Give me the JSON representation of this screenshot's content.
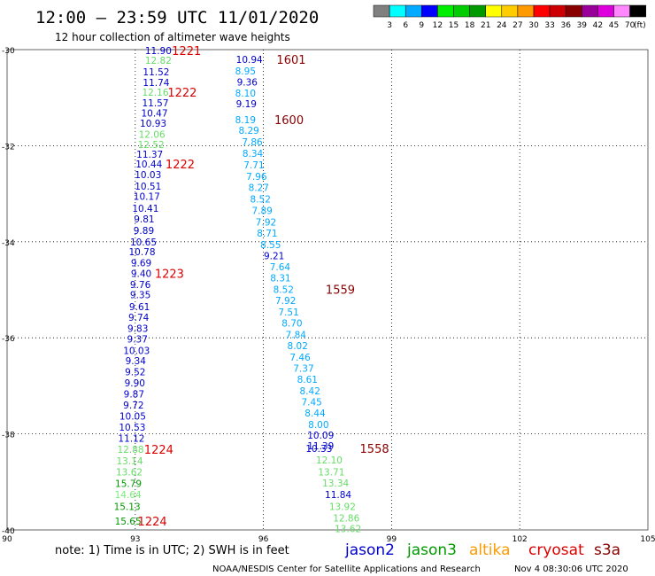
{
  "header": {
    "title": "12:00 — 23:59 UTC 11/01/2020",
    "subtitle": "12 hour collection of altimeter wave heights"
  },
  "colorbar": {
    "colors": [
      "#808080",
      "#00ffff",
      "#00aaff",
      "#0000ff",
      "#00ee00",
      "#00cc00",
      "#009900",
      "#ffff00",
      "#ffcc00",
      "#ff9900",
      "#ff0000",
      "#cc0000",
      "#880000",
      "#990099",
      "#dd00dd",
      "#ff88ff",
      "#000000"
    ],
    "labels": [
      "3",
      "6",
      "9",
      "12",
      "15",
      "18",
      "21",
      "24",
      "27",
      "30",
      "33",
      "36",
      "39",
      "42",
      "45",
      "70"
    ],
    "unit": "(ft)"
  },
  "footer": {
    "note": "note:  1) Time is in UTC;  2) SWH is in feet",
    "credit": "NOAA/NESDIS Center for Satellite Applications and Research",
    "timestamp": "Nov  4 08:30:06 UTC 2020",
    "satellites": [
      {
        "name": "jason2",
        "color": "#0000cc"
      },
      {
        "name": "jason3",
        "color": "#009900"
      },
      {
        "name": "altika",
        "color": "#ff9900"
      },
      {
        "name": "cryosat",
        "color": "#dd0000"
      },
      {
        "name": "s3a",
        "color": "#880000"
      }
    ]
  },
  "chart_data": {
    "type": "scatter",
    "xlim": [
      90,
      105
    ],
    "ylim": [
      -40,
      -30
    ],
    "xticks": [
      "90",
      "93",
      "96",
      "99",
      "102",
      "105"
    ],
    "yticks": [
      "-30",
      "-32",
      "-34",
      "-36",
      "-38",
      "-40"
    ],
    "grid": true,
    "point_colors": {
      "c3": "#00aaff",
      "c6": "#1a8cd9",
      "c9": "#0000cc",
      "c12": "#00cc00",
      "c12b": "#66dd66",
      "c15": "#009900",
      "c15b": "#77ee77"
    },
    "track_west": [
      {
        "x": 93.54,
        "y": -30.02,
        "label": "11.90",
        "color": "c9"
      },
      {
        "x": 93.54,
        "y": -30.22,
        "label": "12.82",
        "color": "c12b"
      },
      {
        "x": 93.49,
        "y": -30.46,
        "label": "11.52",
        "color": "c9"
      },
      {
        "x": 93.49,
        "y": -30.68,
        "label": "11.74",
        "color": "c9"
      },
      {
        "x": 93.47,
        "y": -30.89,
        "label": "12.16",
        "color": "c12b"
      },
      {
        "x": 93.47,
        "y": -31.11,
        "label": "11.57",
        "color": "c9"
      },
      {
        "x": 93.45,
        "y": -31.32,
        "label": "10.47",
        "color": "c9"
      },
      {
        "x": 93.42,
        "y": -31.53,
        "label": "10.93",
        "color": "c9"
      },
      {
        "x": 93.39,
        "y": -31.76,
        "label": "12.06",
        "color": "c12b"
      },
      {
        "x": 93.37,
        "y": -31.97,
        "label": "12.52",
        "color": "c12b"
      },
      {
        "x": 93.34,
        "y": -32.18,
        "label": "11.37",
        "color": "c9"
      },
      {
        "x": 93.32,
        "y": -32.38,
        "label": "10.44",
        "color": "c9"
      },
      {
        "x": 93.3,
        "y": -32.6,
        "label": "10.03",
        "color": "c9"
      },
      {
        "x": 93.3,
        "y": -32.84,
        "label": "10.51",
        "color": "c9"
      },
      {
        "x": 93.27,
        "y": -33.05,
        "label": "10.17",
        "color": "c9"
      },
      {
        "x": 93.24,
        "y": -33.3,
        "label": "10.41",
        "color": "c9"
      },
      {
        "x": 93.21,
        "y": -33.52,
        "label": "9.81",
        "color": "c9"
      },
      {
        "x": 93.2,
        "y": -33.76,
        "label": "9.89",
        "color": "c9"
      },
      {
        "x": 93.19,
        "y": -34.0,
        "label": "10.65",
        "color": "c9"
      },
      {
        "x": 93.16,
        "y": -34.21,
        "label": "10.78",
        "color": "c9"
      },
      {
        "x": 93.14,
        "y": -34.44,
        "label": "9.69",
        "color": "c9"
      },
      {
        "x": 93.14,
        "y": -34.66,
        "label": "9.40",
        "color": "c9"
      },
      {
        "x": 93.12,
        "y": -34.89,
        "label": "9.76",
        "color": "c9"
      },
      {
        "x": 93.12,
        "y": -35.1,
        "label": "9.35",
        "color": "c9"
      },
      {
        "x": 93.1,
        "y": -35.35,
        "label": "9.61",
        "color": "c9"
      },
      {
        "x": 93.08,
        "y": -35.57,
        "label": "9.74",
        "color": "c9"
      },
      {
        "x": 93.06,
        "y": -35.8,
        "label": "9.83",
        "color": "c9"
      },
      {
        "x": 93.05,
        "y": -36.02,
        "label": "9.37",
        "color": "c9"
      },
      {
        "x": 93.03,
        "y": -36.26,
        "label": "10.03",
        "color": "c9"
      },
      {
        "x": 93.01,
        "y": -36.48,
        "label": "9.34",
        "color": "c9"
      },
      {
        "x": 93.0,
        "y": -36.71,
        "label": "9.52",
        "color": "c9"
      },
      {
        "x": 92.99,
        "y": -36.94,
        "label": "9.90",
        "color": "c9"
      },
      {
        "x": 92.97,
        "y": -37.17,
        "label": "9.87",
        "color": "c9"
      },
      {
        "x": 92.96,
        "y": -37.4,
        "label": "9.72",
        "color": "c9"
      },
      {
        "x": 92.94,
        "y": -37.63,
        "label": "10.05",
        "color": "c9"
      },
      {
        "x": 92.93,
        "y": -37.86,
        "label": "10.53",
        "color": "c9"
      },
      {
        "x": 92.91,
        "y": -38.09,
        "label": "11.12",
        "color": "c9"
      },
      {
        "x": 92.89,
        "y": -38.32,
        "label": "12.88",
        "color": "c12b"
      },
      {
        "x": 92.87,
        "y": -38.56,
        "label": "13.14",
        "color": "c12b"
      },
      {
        "x": 92.86,
        "y": -38.79,
        "label": "13.62",
        "color": "c12b"
      },
      {
        "x": 92.84,
        "y": -39.03,
        "label": "15.79",
        "color": "c15"
      },
      {
        "x": 92.83,
        "y": -39.26,
        "label": "14.64",
        "color": "c15b"
      },
      {
        "x": 92.81,
        "y": -39.51,
        "label": "15.13",
        "color": "c15"
      },
      {
        "x": 92.83,
        "y": -39.82,
        "label": "15.65",
        "color": "c15"
      }
    ],
    "track_east": [
      {
        "x": 95.67,
        "y": -30.2,
        "label": "10.94",
        "color": "c9"
      },
      {
        "x": 95.58,
        "y": -30.44,
        "label": "8.95",
        "color": "c3"
      },
      {
        "x": 95.62,
        "y": -30.67,
        "label": "9.36",
        "color": "c9"
      },
      {
        "x": 95.58,
        "y": -30.9,
        "label": "8.10",
        "color": "c3"
      },
      {
        "x": 95.6,
        "y": -31.13,
        "label": "9.19",
        "color": "c9"
      },
      {
        "x": 95.58,
        "y": -31.46,
        "label": "8.19",
        "color": "c3"
      },
      {
        "x": 95.66,
        "y": -31.68,
        "label": "8.29",
        "color": "c3"
      },
      {
        "x": 95.74,
        "y": -31.92,
        "label": "7.86",
        "color": "c3"
      },
      {
        "x": 95.75,
        "y": -32.16,
        "label": "8.34",
        "color": "c3"
      },
      {
        "x": 95.78,
        "y": -32.4,
        "label": "7.71",
        "color": "c3"
      },
      {
        "x": 95.84,
        "y": -32.64,
        "label": "7.96",
        "color": "c3"
      },
      {
        "x": 95.89,
        "y": -32.87,
        "label": "8.27",
        "color": "c3"
      },
      {
        "x": 95.93,
        "y": -33.11,
        "label": "8.52",
        "color": "c3"
      },
      {
        "x": 95.97,
        "y": -33.35,
        "label": "7.89",
        "color": "c3"
      },
      {
        "x": 96.06,
        "y": -33.59,
        "label": "7.92",
        "color": "c3"
      },
      {
        "x": 96.09,
        "y": -33.82,
        "label": "8.71",
        "color": "c3"
      },
      {
        "x": 96.17,
        "y": -34.06,
        "label": "8.55",
        "color": "c3"
      },
      {
        "x": 96.25,
        "y": -34.29,
        "label": "9.21",
        "color": "c9"
      },
      {
        "x": 96.39,
        "y": -34.52,
        "label": "7.64",
        "color": "c3"
      },
      {
        "x": 96.4,
        "y": -34.75,
        "label": "8.31",
        "color": "c3"
      },
      {
        "x": 96.47,
        "y": -34.99,
        "label": "8.52",
        "color": "c3"
      },
      {
        "x": 96.52,
        "y": -35.22,
        "label": "7.92",
        "color": "c3"
      },
      {
        "x": 96.59,
        "y": -35.46,
        "label": "7.51",
        "color": "c3"
      },
      {
        "x": 96.67,
        "y": -35.69,
        "label": "8.70",
        "color": "c3"
      },
      {
        "x": 96.76,
        "y": -35.93,
        "label": "7.84",
        "color": "c3"
      },
      {
        "x": 96.8,
        "y": -36.16,
        "label": "8.02",
        "color": "c3"
      },
      {
        "x": 96.86,
        "y": -36.4,
        "label": "7.46",
        "color": "c3"
      },
      {
        "x": 96.94,
        "y": -36.63,
        "label": "7.37",
        "color": "c3"
      },
      {
        "x": 97.03,
        "y": -36.86,
        "label": "8.61",
        "color": "c3"
      },
      {
        "x": 97.09,
        "y": -37.1,
        "label": "8.42",
        "color": "c3"
      },
      {
        "x": 97.13,
        "y": -37.33,
        "label": "7.45",
        "color": "c3"
      },
      {
        "x": 97.21,
        "y": -37.56,
        "label": "8.44",
        "color": "c3"
      },
      {
        "x": 97.29,
        "y": -37.8,
        "label": "8.00",
        "color": "c3"
      },
      {
        "x": 97.34,
        "y": -38.03,
        "label": "10.09",
        "color": "c9"
      },
      {
        "x": 97.34,
        "y": -38.25,
        "label": "11.39",
        "color": "c9"
      },
      {
        "x": 97.3,
        "y": -38.3,
        "label": "10.33",
        "color": "c9"
      },
      {
        "x": 97.54,
        "y": -38.54,
        "label": "12.10",
        "color": "c12b"
      },
      {
        "x": 97.59,
        "y": -38.79,
        "label": "13.71",
        "color": "c12b"
      },
      {
        "x": 97.69,
        "y": -39.02,
        "label": "13.34",
        "color": "c12b"
      },
      {
        "x": 97.75,
        "y": -39.26,
        "label": "11.84",
        "color": "c9"
      },
      {
        "x": 97.85,
        "y": -39.51,
        "label": "13.92",
        "color": "c12b"
      },
      {
        "x": 97.94,
        "y": -39.75,
        "label": "12.86",
        "color": "c12b"
      },
      {
        "x": 97.98,
        "y": -39.97,
        "label": "13.62",
        "color": "c12b"
      }
    ],
    "time_labels": [
      {
        "x": 94.2,
        "y": -30.02,
        "label": "1221",
        "color": "#dd0000"
      },
      {
        "x": 96.65,
        "y": -30.2,
        "label": "1601",
        "color": "#880000"
      },
      {
        "x": 94.1,
        "y": -30.89,
        "label": "1222",
        "color": "#dd0000"
      },
      {
        "x": 96.6,
        "y": -31.46,
        "label": "1600",
        "color": "#880000"
      },
      {
        "x": 94.05,
        "y": -32.38,
        "label": "1222",
        "color": "#dd0000"
      },
      {
        "x": 93.8,
        "y": -34.66,
        "label": "1223",
        "color": "#dd0000"
      },
      {
        "x": 97.8,
        "y": -34.99,
        "label": "1559",
        "color": "#880000"
      },
      {
        "x": 93.55,
        "y": -38.32,
        "label": "1224",
        "color": "#dd0000"
      },
      {
        "x": 98.6,
        "y": -38.3,
        "label": "1558",
        "color": "#880000"
      },
      {
        "x": 93.4,
        "y": -39.82,
        "label": "1224",
        "color": "#dd0000"
      }
    ]
  }
}
